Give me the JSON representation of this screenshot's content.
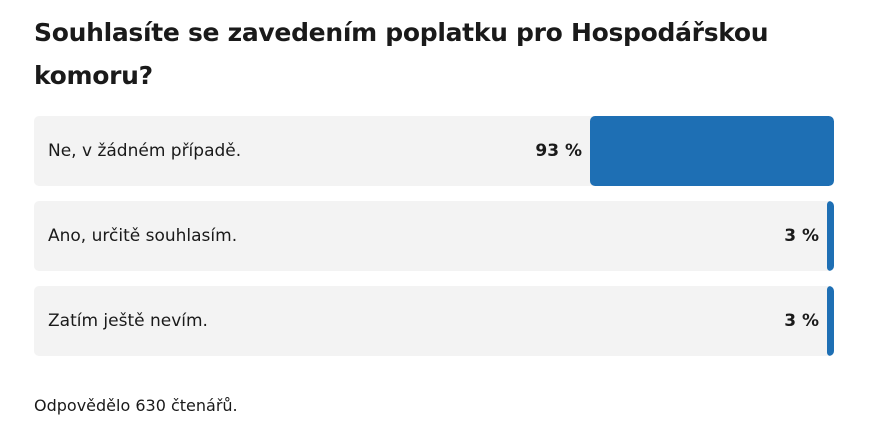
{
  "poll": {
    "question": "Souhlasíte se zavedením poplatku pro Hospodářskou komoru?",
    "options": [
      {
        "label": "Ne, v žádném případě.",
        "percent_text": "93 %",
        "percent": 93
      },
      {
        "label": "Ano, určitě souhlasím.",
        "percent_text": "3 %",
        "percent": 3
      },
      {
        "label": "Zatím ještě nevím.",
        "percent_text": "3 %",
        "percent": 3
      }
    ],
    "footer": "Odpovědělo 630 čtenářů.",
    "bar_color": "#1e6fb4",
    "option_background": "#f3f3f3"
  }
}
